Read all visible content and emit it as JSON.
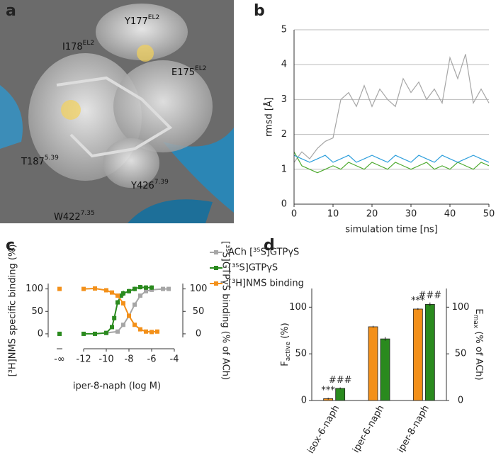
{
  "panel_a": {
    "panel_label": "a",
    "residues": [
      {
        "name": "Y177",
        "sup": "EL2"
      },
      {
        "name": "I178",
        "sup": "EL2"
      },
      {
        "name": "E175",
        "sup": "EL2"
      },
      {
        "name": "T187",
        "sup": "5.39"
      },
      {
        "name": "Y426",
        "sup": "7.39"
      },
      {
        "name": "W422",
        "sup": "7.35"
      }
    ]
  },
  "chart_data": [
    {
      "type": "line",
      "panel_label": "b",
      "y_label": "rmsd [Å]",
      "x_label": "simulation time [ns]",
      "x": [
        0,
        2,
        4,
        6,
        8,
        10,
        12,
        14,
        16,
        18,
        20,
        22,
        24,
        26,
        28,
        30,
        32,
        34,
        36,
        38,
        40,
        42,
        44,
        46,
        48,
        50
      ],
      "series": [
        {
          "color": "#a6a6a6",
          "values": [
            1.2,
            1.5,
            1.3,
            1.6,
            1.8,
            1.9,
            3.0,
            3.2,
            2.8,
            3.4,
            2.8,
            3.3,
            3.0,
            2.8,
            3.6,
            3.2,
            3.5,
            3.0,
            3.3,
            2.9,
            4.2,
            3.6,
            4.3,
            2.9,
            3.3,
            2.9
          ]
        },
        {
          "color": "#4daa2e",
          "values": [
            1.5,
            1.1,
            1.0,
            0.9,
            1.0,
            1.1,
            1.0,
            1.2,
            1.1,
            1.0,
            1.2,
            1.1,
            1.0,
            1.2,
            1.1,
            1.0,
            1.1,
            1.2,
            1.0,
            1.1,
            1.0,
            1.2,
            1.1,
            1.0,
            1.2,
            1.1
          ]
        },
        {
          "color": "#2e9fdc",
          "values": [
            1.4,
            1.3,
            1.2,
            1.3,
            1.4,
            1.2,
            1.3,
            1.4,
            1.2,
            1.3,
            1.4,
            1.3,
            1.2,
            1.4,
            1.3,
            1.2,
            1.4,
            1.3,
            1.2,
            1.4,
            1.3,
            1.2,
            1.3,
            1.4,
            1.3,
            1.2
          ]
        }
      ],
      "xlim": [
        0,
        50
      ],
      "xticks": [
        0,
        10,
        20,
        30,
        40,
        50
      ],
      "ylim": [
        0,
        5
      ],
      "yticks": [
        0,
        1,
        2,
        3,
        4,
        5
      ],
      "grid": true
    },
    {
      "type": "scatter",
      "panel_label": "c",
      "y_label": "[³H]NMS specific binding (%)",
      "y2_label": "[³⁵S]GTPγS binding (% of ACh)",
      "x_label": "iper-8-naph (log M)",
      "zero_dose_label": "-∞",
      "series": [
        {
          "name": "ACh [³⁵S]GTPγS",
          "color": "#a6a6a6",
          "axis": "y2",
          "zero_dose": 0,
          "x": [
            -10,
            -9,
            -8.5,
            -8,
            -7.5,
            -7,
            -6.5,
            -6,
            -5,
            -4.5
          ],
          "values": [
            2,
            5,
            20,
            40,
            65,
            85,
            95,
            98,
            100,
            100
          ],
          "errors": [
            1,
            2,
            3,
            3,
            3,
            3,
            2,
            2,
            1,
            1
          ]
        },
        {
          "name": "[³⁵S]GTPγS",
          "color": "#2a8a1e",
          "axis": "y2",
          "zero_dose": 0,
          "x": [
            -12,
            -11,
            -10,
            -9.5,
            -9.3,
            -9,
            -8.7,
            -8.5,
            -8,
            -7.5,
            -7,
            -6.5,
            -6
          ],
          "values": [
            0,
            0,
            2,
            15,
            35,
            70,
            85,
            90,
            95,
            100,
            104,
            103,
            103
          ],
          "errors": [
            1,
            1,
            2,
            3,
            4,
            5,
            5,
            6,
            5,
            5,
            5,
            5,
            5
          ]
        },
        {
          "name": "[³H]NMS binding",
          "color": "#f39019",
          "zero_dose": 100,
          "x": [
            -12,
            -11,
            -10,
            -9.5,
            -9,
            -8.5,
            -8,
            -7.5,
            -7,
            -6.5,
            -6,
            -5.5
          ],
          "values": [
            100,
            101,
            97,
            92,
            85,
            68,
            40,
            20,
            10,
            5,
            4,
            5
          ],
          "errors": [
            2,
            3,
            3,
            3,
            3,
            3,
            3,
            2,
            2,
            1,
            1,
            1
          ]
        }
      ],
      "xlim": [
        -12.5,
        -4
      ],
      "xticks": [
        -12,
        -10,
        -8,
        -6,
        -4
      ],
      "ylim": [
        -8,
        112
      ],
      "yticks": [
        0,
        50,
        100
      ],
      "y2lim": [
        -8,
        112
      ],
      "y2ticks": [
        0,
        50,
        100
      ]
    },
    {
      "type": "bar",
      "panel_label": "d",
      "y_label": {
        "main": "F",
        "sub": "active",
        "tail": " (%)"
      },
      "y2_label": {
        "main": "E",
        "sub": "max",
        "tail": " (% of ACh)"
      },
      "categories": [
        "isox-6-naph",
        "iper-6-naph",
        "iper-8-naph"
      ],
      "series": [
        {
          "color": "#f39019",
          "values": [
            2,
            79,
            98
          ],
          "errors": [
            1,
            1,
            1
          ],
          "annotations": [
            "***",
            null,
            "***"
          ]
        },
        {
          "color": "#2a8a1e",
          "axis": "y2",
          "values": [
            13,
            66,
            103
          ],
          "errors": [
            1,
            2,
            2
          ],
          "annotations": [
            "###",
            null,
            "###"
          ]
        }
      ],
      "ylim": [
        0,
        120
      ],
      "yticks": [
        0,
        50,
        100
      ],
      "y2lim": [
        0,
        120
      ],
      "y2ticks": [
        0,
        50,
        100
      ]
    }
  ]
}
